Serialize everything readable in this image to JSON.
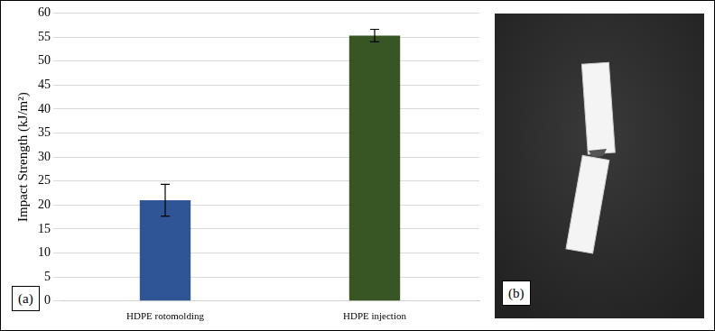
{
  "chart_data": {
    "type": "bar",
    "categories": [
      "HDPE rotomolding",
      "HDPE injection"
    ],
    "values": [
      21,
      55.3
    ],
    "errors": [
      3.3,
      1.3
    ],
    "colors": [
      "#2f5597",
      "#375623"
    ],
    "y_label": "Impact Strength (kJ/m²)",
    "ylim": [
      0,
      60
    ],
    "yticks": [
      0,
      5,
      10,
      15,
      20,
      25,
      30,
      35,
      40,
      45,
      50,
      55,
      60
    ],
    "grid": true,
    "annotations": [
      "(a)",
      "(b)"
    ]
  }
}
